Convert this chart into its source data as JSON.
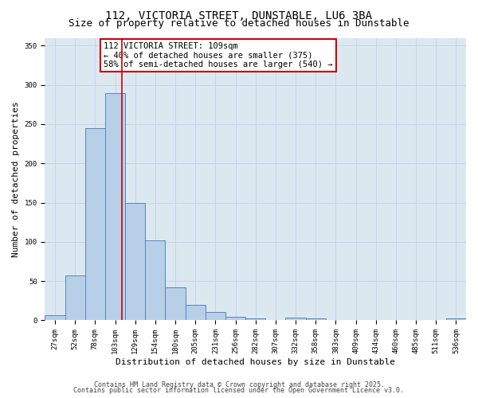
{
  "title": "112, VICTORIA STREET, DUNSTABLE, LU6 3BA",
  "subtitle": "Size of property relative to detached houses in Dunstable",
  "xlabel": "Distribution of detached houses by size in Dunstable",
  "ylabel": "Number of detached properties",
  "categories": [
    "27sqm",
    "52sqm",
    "78sqm",
    "103sqm",
    "129sqm",
    "154sqm",
    "180sqm",
    "205sqm",
    "231sqm",
    "256sqm",
    "282sqm",
    "307sqm",
    "332sqm",
    "358sqm",
    "383sqm",
    "409sqm",
    "434sqm",
    "460sqm",
    "485sqm",
    "511sqm",
    "536sqm"
  ],
  "values": [
    7,
    57,
    245,
    290,
    150,
    102,
    42,
    20,
    11,
    5,
    3,
    0,
    4,
    3,
    0,
    0,
    0,
    0,
    0,
    0,
    3
  ],
  "bar_color": "#b8cfe8",
  "bar_edge_color": "#5585c0",
  "red_line_color": "#cc0000",
  "annotation_text": "112 VICTORIA STREET: 109sqm\n← 40% of detached houses are smaller (375)\n58% of semi-detached houses are larger (540) →",
  "annotation_box_color": "#ffffff",
  "annotation_box_edge": "#cc0000",
  "ylim": [
    0,
    360
  ],
  "yticks": [
    0,
    50,
    100,
    150,
    200,
    250,
    300,
    350
  ],
  "grid_color": "#c8d4e8",
  "bg_color": "#dce8f0",
  "footer1": "Contains HM Land Registry data © Crown copyright and database right 2025.",
  "footer2": "Contains public sector information licensed under the Open Government Licence v3.0.",
  "title_fontsize": 10,
  "subtitle_fontsize": 9,
  "annot_fontsize": 7.5,
  "tick_fontsize": 6.5,
  "ylabel_fontsize": 8,
  "xlabel_fontsize": 8,
  "red_line_index": 3.35
}
